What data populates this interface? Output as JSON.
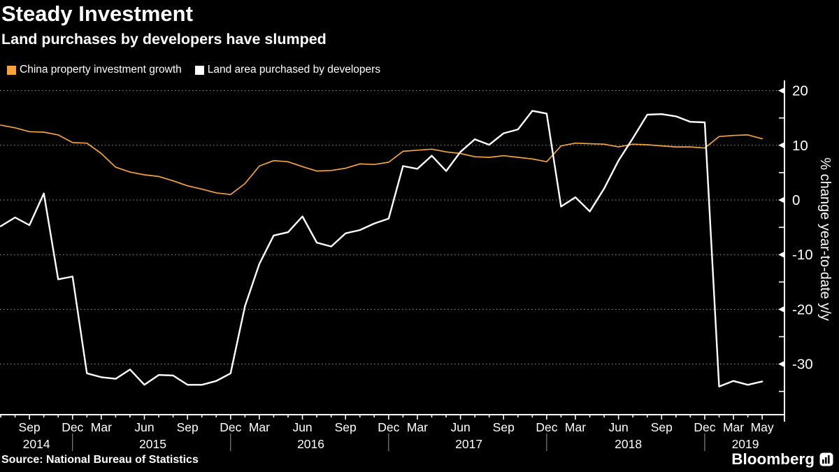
{
  "header": {
    "title": "Steady Investment",
    "subtitle": "Land purchases by developers have slumped"
  },
  "legend": [
    {
      "label": "China property investment growth",
      "color": "#f5a33c"
    },
    {
      "label": "Land area purchased by developers",
      "color": "#ffffff"
    }
  ],
  "source": "Source: National Bureau of Statistics",
  "branding": {
    "logo_text": "Bloomberg",
    "logo_icon": "bar-chart-icon"
  },
  "colors": {
    "background": "#000000",
    "text": "#ffffff",
    "grid": "#9b9b9b",
    "axis": "#ffffff",
    "divider": "#9b9b9b"
  },
  "chart_data": {
    "type": "line",
    "title": "Steady Investment",
    "subtitle": "Land purchases by developers have slumped",
    "xlabel": "",
    "ylabel": "% change year-to-date y/y",
    "ylim": [
      -39,
      22
    ],
    "grid": "dotted horizontal lines at major y ticks",
    "legend_position": "top-left",
    "y_axis": {
      "side": "right",
      "major_ticks": [
        20,
        10,
        0,
        -10,
        -20,
        -30
      ],
      "minor_ticks": [
        15,
        5,
        -5,
        -15,
        -25,
        -35
      ]
    },
    "x_categories": [
      "Jul 2014",
      "Aug 2014",
      "Sep 2014",
      "Oct 2014",
      "Nov 2014",
      "Dec 2014",
      "Feb 2015",
      "Mar 2015",
      "Apr 2015",
      "May 2015",
      "Jun 2015",
      "Jul 2015",
      "Aug 2015",
      "Sep 2015",
      "Oct 2015",
      "Nov 2015",
      "Dec 2015",
      "Feb 2016",
      "Mar 2016",
      "Apr 2016",
      "May 2016",
      "Jun 2016",
      "Jul 2016",
      "Aug 2016",
      "Sep 2016",
      "Oct 2016",
      "Nov 2016",
      "Dec 2016",
      "Feb 2017",
      "Mar 2017",
      "Apr 2017",
      "May 2017",
      "Jun 2017",
      "Jul 2017",
      "Aug 2017",
      "Sep 2017",
      "Oct 2017",
      "Nov 2017",
      "Dec 2017",
      "Feb 2018",
      "Mar 2018",
      "Apr 2018",
      "May 2018",
      "Jun 2018",
      "Jul 2018",
      "Aug 2018",
      "Sep 2018",
      "Oct 2018",
      "Nov 2018",
      "Dec 2018",
      "Feb 2019",
      "Mar 2019",
      "Apr 2019",
      "May 2019"
    ],
    "x_tick_labels": [
      {
        "index": 2,
        "label": "Sep"
      },
      {
        "index": 5,
        "label": "Dec"
      },
      {
        "index": 7,
        "label": "Mar"
      },
      {
        "index": 10,
        "label": "Jun"
      },
      {
        "index": 13,
        "label": "Sep"
      },
      {
        "index": 16,
        "label": "Dec"
      },
      {
        "index": 18,
        "label": "Mar"
      },
      {
        "index": 21,
        "label": "Jun"
      },
      {
        "index": 24,
        "label": "Sep"
      },
      {
        "index": 27,
        "label": "Dec"
      },
      {
        "index": 29,
        "label": "Mar"
      },
      {
        "index": 32,
        "label": "Jun"
      },
      {
        "index": 35,
        "label": "Sep"
      },
      {
        "index": 38,
        "label": "Dec"
      },
      {
        "index": 40,
        "label": "Mar"
      },
      {
        "index": 43,
        "label": "Jun"
      },
      {
        "index": 46,
        "label": "Sep"
      },
      {
        "index": 49,
        "label": "Dec"
      },
      {
        "index": 51,
        "label": "Mar"
      },
      {
        "index": 53,
        "label": "May"
      }
    ],
    "year_labels": [
      {
        "index": 2,
        "label": "2014",
        "dx": 10
      },
      {
        "index": 10,
        "label": "2015",
        "dx": 12
      },
      {
        "index": 21,
        "label": "2016",
        "dx": 12
      },
      {
        "index": 32,
        "label": "2017",
        "dx": 12
      },
      {
        "index": 43,
        "label": "2018",
        "dx": 14
      },
      {
        "index": 51,
        "label": "2019",
        "dx": 17
      }
    ],
    "year_divider_indices": [
      5,
      16,
      27,
      38,
      49
    ],
    "series": [
      {
        "name": "China property investment growth",
        "color": "#f5a33c",
        "width": 1.7,
        "values": [
          13.7,
          13.2,
          12.5,
          12.4,
          11.9,
          10.5,
          10.4,
          8.5,
          6.0,
          5.1,
          4.6,
          4.3,
          3.5,
          2.6,
          2.0,
          1.3,
          1.0,
          3.0,
          6.2,
          7.2,
          7.0,
          6.1,
          5.3,
          5.4,
          5.8,
          6.6,
          6.5,
          6.9,
          8.9,
          9.1,
          9.3,
          8.8,
          8.5,
          7.9,
          7.8,
          8.1,
          7.8,
          7.5,
          7.0,
          9.9,
          10.4,
          10.3,
          10.2,
          9.7,
          10.2,
          10.1,
          9.9,
          9.7,
          9.7,
          9.5,
          11.6,
          11.8,
          11.9,
          11.2
        ]
      },
      {
        "name": "Land area purchased by developers",
        "color": "#ffffff",
        "width": 2.4,
        "values": [
          -4.8,
          -3.2,
          -4.6,
          1.2,
          -14.5,
          -14.0,
          -31.7,
          -32.4,
          -32.7,
          -31.0,
          -33.8,
          -32.0,
          -32.1,
          -33.8,
          -33.8,
          -33.1,
          -31.7,
          -19.4,
          -11.7,
          -6.5,
          -5.9,
          -3.0,
          -7.8,
          -8.5,
          -6.1,
          -5.5,
          -4.3,
          -3.4,
          6.2,
          5.7,
          8.1,
          5.3,
          8.8,
          11.1,
          10.1,
          12.2,
          12.9,
          16.3,
          15.8,
          -1.2,
          0.5,
          -2.1,
          2.1,
          7.2,
          11.3,
          15.6,
          15.7,
          15.3,
          14.3,
          14.2,
          -34.1,
          -33.1,
          -33.8,
          -33.2
        ]
      }
    ]
  }
}
